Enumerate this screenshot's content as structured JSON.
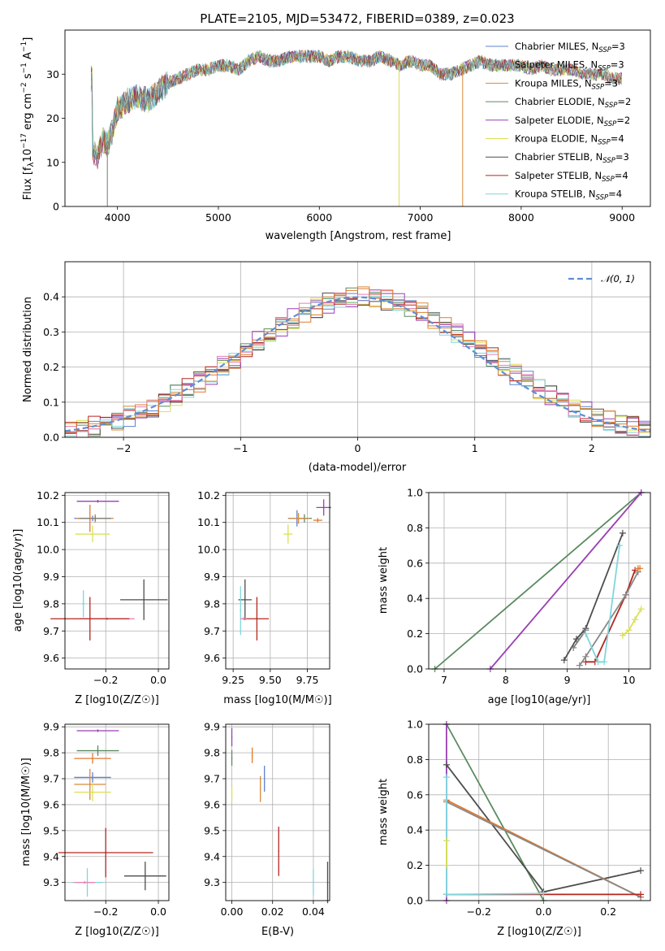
{
  "colors": [
    "#5e81d1",
    "#7e7e7e",
    "#d98b3a",
    "#5b8a5f",
    "#9a3fb3",
    "#d9e055",
    "#4d4d4d",
    "#b5261e",
    "#7fd6dc"
  ],
  "extra_colors": {
    "pink": "#e77fb3",
    "orange": "#e07a2e",
    "gray": "#888888"
  },
  "chart_data": [
    {
      "type": "line",
      "title": "PLATE=2105, MJD=53472, FIBERID=0389, z=0.023",
      "xlabel": "wavelength [Angstrom, rest frame]",
      "ylabel": "Flux [f_λ10^-17 erg cm^-2 s^-1 A^-1]",
      "xlim": [
        3480,
        9280
      ],
      "ylim": [
        0,
        40
      ],
      "xticks": [
        "4000",
        "5000",
        "6000",
        "7000",
        "8000",
        "9000"
      ],
      "yticks": [
        "0",
        "10",
        "20",
        "30"
      ],
      "legend_position": "upper-right",
      "series": [
        {
          "name": "Chabrier MILES, N_SSP=3"
        },
        {
          "name": "Salpeter MILES, N_SSP=3"
        },
        {
          "name": "Kroupa MILES, N_SSP=3"
        },
        {
          "name": "Chabrier ELODIE, N_SSP=2"
        },
        {
          "name": "Salpeter ELODIE, N_SSP=2"
        },
        {
          "name": "Kroupa ELODIE, N_SSP=4"
        },
        {
          "name": "Chabrier STELIB, N_SSP=3"
        },
        {
          "name": "Salpeter STELIB, N_SSP=4"
        },
        {
          "name": "Kroupa STELIB, N_SSP=4"
        }
      ],
      "anchors": [
        [
          3750,
          13
        ],
        [
          3800,
          11
        ],
        [
          3850,
          15
        ],
        [
          3900,
          14
        ],
        [
          3950,
          17
        ],
        [
          4000,
          22
        ],
        [
          4100,
          24
        ],
        [
          4200,
          25
        ],
        [
          4300,
          24
        ],
        [
          4400,
          26
        ],
        [
          4500,
          28
        ],
        [
          4600,
          29
        ],
        [
          4700,
          30
        ],
        [
          4800,
          31
        ],
        [
          4900,
          31
        ],
        [
          5000,
          32
        ],
        [
          5100,
          32
        ],
        [
          5200,
          31
        ],
        [
          5300,
          33
        ],
        [
          5400,
          34
        ],
        [
          5500,
          33
        ],
        [
          5600,
          33
        ],
        [
          5700,
          34
        ],
        [
          5800,
          34
        ],
        [
          5900,
          34
        ],
        [
          6000,
          34
        ],
        [
          6100,
          33
        ],
        [
          6200,
          34
        ],
        [
          6300,
          34
        ],
        [
          6400,
          33
        ],
        [
          6500,
          33
        ],
        [
          6600,
          34
        ],
        [
          6700,
          33
        ],
        [
          6800,
          32
        ],
        [
          6900,
          33
        ],
        [
          7000,
          32
        ],
        [
          7100,
          32
        ],
        [
          7200,
          30
        ],
        [
          7300,
          30
        ],
        [
          7400,
          31
        ],
        [
          7500,
          32
        ],
        [
          7600,
          33
        ],
        [
          7700,
          32
        ],
        [
          7800,
          32
        ],
        [
          7900,
          32
        ],
        [
          8000,
          32
        ],
        [
          8100,
          31
        ],
        [
          8200,
          32
        ],
        [
          8300,
          31
        ],
        [
          8400,
          31
        ],
        [
          8500,
          31
        ],
        [
          8600,
          30
        ],
        [
          8700,
          30
        ],
        [
          8800,
          30
        ],
        [
          8900,
          29
        ],
        [
          9000,
          29
        ]
      ],
      "drops": [
        {
          "x": 3900,
          "series": 3
        },
        {
          "x": 6790,
          "series": 5
        },
        {
          "x": 7420,
          "series": 2
        }
      ]
    },
    {
      "type": "bar",
      "ylabel": "Normed distribution",
      "xlabel": "(data-model)/error",
      "xlim": [
        -2.5,
        2.5
      ],
      "ylim": [
        0,
        0.5
      ],
      "xticks": [
        "−2",
        "−1",
        "0",
        "1",
        "2"
      ],
      "yticks": [
        "0.0",
        "0.1",
        "0.2",
        "0.3",
        "0.4"
      ],
      "legend": {
        "label": "𝒩(0, 1)",
        "position": "upper-right"
      },
      "bin_width": 0.1
    },
    {
      "type": "scatter",
      "xlabel": "Z [log10(Z/Z☉)]",
      "ylabel": "age  [log10(age/yr)]",
      "xlim": [
        -0.355,
        0.04
      ],
      "ylim": [
        9.56,
        10.21
      ],
      "xticks": [
        "−0.2",
        "0.0"
      ],
      "xtick_values": [
        -0.2,
        0.0
      ],
      "yticks": [
        "9.6",
        "9.7",
        "9.8",
        "9.9",
        "10.0",
        "10.1",
        "10.2"
      ],
      "points": [
        {
          "x": -0.25,
          "y": 10.115,
          "xerr": 0.07,
          "yerr": 0.01,
          "color": 0
        },
        {
          "x": -0.24,
          "y": 10.115,
          "xerr": 0.07,
          "yerr": 0.015,
          "color": 2
        },
        {
          "x": -0.26,
          "y": 10.115,
          "xerr": 0.045,
          "yerr": 0.05,
          "color": 10
        },
        {
          "x": -0.23,
          "y": 10.178,
          "xerr": 0.08,
          "yerr": 0.005,
          "color": 4
        },
        {
          "x": -0.25,
          "y": 10.057,
          "xerr": 0.065,
          "yerr": 0.03,
          "color": 5
        },
        {
          "x": -0.24,
          "y": 10.115,
          "xerr": 0.06,
          "yerr": 0.01,
          "color": 1
        },
        {
          "x": -0.055,
          "y": 9.815,
          "xerr": 0.09,
          "yerr": 0.075,
          "color": 6
        },
        {
          "x": -0.195,
          "y": 9.745,
          "xerr": 0.105,
          "yerr": 0.005,
          "color": 9
        },
        {
          "x": -0.26,
          "y": 9.745,
          "xerr": 0.15,
          "yerr": 0.08,
          "color": 7
        },
        {
          "x": -0.285,
          "y": 9.8,
          "xerr": 0.005,
          "yerr": 0.05,
          "color": 8
        }
      ]
    },
    {
      "type": "scatter",
      "xlabel": "mass [log10(M/M☉)]",
      "ylabel": "",
      "xlim": [
        9.2,
        9.9
      ],
      "ylim": [
        9.56,
        10.21
      ],
      "xticks": [
        "9.25",
        "9.50",
        "9.75"
      ],
      "xtick_values": [
        9.25,
        9.5,
        9.75
      ],
      "yticks": [
        "9.6",
        "9.7",
        "9.8",
        "9.9",
        "10.0",
        "10.1",
        "10.2"
      ],
      "points": [
        {
          "x": 9.86,
          "y": 10.155,
          "xerr": 0.05,
          "yerr": 0.03,
          "color": 4
        },
        {
          "x": 9.73,
          "y": 10.115,
          "xerr": 0.05,
          "yerr": 0.015,
          "color": 3
        },
        {
          "x": 9.68,
          "y": 10.115,
          "xerr": 0.06,
          "yerr": 0.03,
          "color": 0
        },
        {
          "x": 9.69,
          "y": 10.115,
          "xerr": 0.07,
          "yerr": 0.02,
          "color": 2
        },
        {
          "x": 9.62,
          "y": 10.057,
          "xerr": 0.03,
          "yerr": 0.035,
          "color": 5
        },
        {
          "x": 9.82,
          "y": 10.108,
          "xerr": 0.03,
          "yerr": 0.008,
          "color": 10
        },
        {
          "x": 9.33,
          "y": 9.815,
          "xerr": 0.045,
          "yerr": 0.075,
          "color": 6
        },
        {
          "x": 9.41,
          "y": 9.745,
          "xerr": 0.08,
          "yerr": 0.08,
          "color": 7
        },
        {
          "x": 9.3,
          "y": 9.775,
          "xerr": 0.005,
          "yerr": 0.09,
          "color": 8
        },
        {
          "x": 9.32,
          "y": 9.745,
          "xerr": 0.02,
          "yerr": 0.005,
          "color": 9
        }
      ]
    },
    {
      "type": "line",
      "xlabel": "age  [log10(age/yr)]",
      "ylabel": "mass weight",
      "xlim": [
        6.75,
        10.35
      ],
      "ylim": [
        0,
        1.0
      ],
      "xticks": [
        "7",
        "8",
        "9",
        "10"
      ],
      "xtick_values": [
        7,
        8,
        9,
        10
      ],
      "yticks": [
        "0.0",
        "0.2",
        "0.4",
        "0.6",
        "0.8",
        "1.0"
      ],
      "ytick_values": [
        0,
        0.2,
        0.4,
        0.6,
        0.8,
        1.0
      ],
      "lines": [
        {
          "color": 3,
          "pts": [
            [
              6.85,
              0
            ],
            [
              10.2,
              1.0
            ]
          ]
        },
        {
          "color": 4,
          "pts": [
            [
              7.75,
              0
            ],
            [
              10.2,
              1.0
            ]
          ]
        },
        {
          "color": 6,
          "pts": [
            [
              8.95,
              0.05
            ],
            [
              9.15,
              0.17
            ],
            [
              9.3,
              0.23
            ],
            [
              9.9,
              0.77
            ]
          ]
        },
        {
          "color": 1,
          "pts": [
            [
              9.1,
              0.12
            ],
            [
              9.3,
              0.22
            ]
          ]
        },
        {
          "color": 7,
          "pts": [
            [
              9.3,
              0.04
            ],
            [
              9.45,
              0.04
            ],
            [
              9.95,
              0.42
            ],
            [
              10.1,
              0.56
            ]
          ]
        },
        {
          "color": 11,
          "pts": [
            [
              9.2,
              0.02
            ],
            [
              9.3,
              0.07
            ],
            [
              9.95,
              0.42
            ],
            [
              10.15,
              0.55
            ]
          ]
        },
        {
          "color": 10,
          "pts": [
            [
              10.15,
              0.57
            ],
            [
              10.18,
              0.57
            ]
          ]
        },
        {
          "color": 8,
          "pts": [
            [
              9.3,
              0.2
            ],
            [
              9.5,
              0.04
            ],
            [
              9.6,
              0.04
            ],
            [
              9.85,
              0.7
            ]
          ]
        },
        {
          "color": 5,
          "pts": [
            [
              9.9,
              0.19
            ],
            [
              10.0,
              0.22
            ],
            [
              10.1,
              0.28
            ],
            [
              10.2,
              0.34
            ]
          ]
        }
      ]
    },
    {
      "type": "scatter",
      "xlabel": "Z [log10(Z/Z☉)]",
      "ylabel": "mass [log10(M/M☉)]",
      "xlim": [
        -0.355,
        0.04
      ],
      "ylim": [
        9.23,
        9.91
      ],
      "xticks": [
        "−0.2",
        "0.0"
      ],
      "xtick_values": [
        -0.2,
        0.0
      ],
      "yticks": [
        "9.3",
        "9.4",
        "9.5",
        "9.6",
        "9.7",
        "9.8",
        "9.9"
      ],
      "points": [
        {
          "x": -0.23,
          "y": 9.885,
          "xerr": 0.08,
          "yerr": 0.005,
          "color": 4
        },
        {
          "x": -0.23,
          "y": 9.808,
          "xerr": 0.08,
          "yerr": 0.02,
          "color": 3
        },
        {
          "x": -0.25,
          "y": 9.778,
          "xerr": 0.07,
          "yerr": 0.02,
          "color": 10
        },
        {
          "x": -0.25,
          "y": 9.705,
          "xerr": 0.07,
          "yerr": 0.02,
          "color": 0
        },
        {
          "x": -0.26,
          "y": 9.678,
          "xerr": 0.06,
          "yerr": 0.06,
          "color": 2
        },
        {
          "x": -0.25,
          "y": 9.648,
          "xerr": 0.07,
          "yerr": 0.035,
          "color": 5
        },
        {
          "x": -0.05,
          "y": 9.325,
          "xerr": 0.08,
          "yerr": 0.055,
          "color": 6
        },
        {
          "x": -0.2,
          "y": 9.415,
          "xerr": 0.18,
          "yerr": 0.095,
          "color": 7
        },
        {
          "x": -0.27,
          "y": 9.3,
          "xerr": 0.06,
          "yerr": 0.055,
          "color": 8
        },
        {
          "x": -0.28,
          "y": 9.3,
          "xerr": 0.04,
          "yerr": 0.005,
          "color": 9
        }
      ]
    },
    {
      "type": "scatter",
      "xlabel": "E(B-V)",
      "ylabel": "",
      "xlim": [
        -0.003,
        0.048
      ],
      "ylim": [
        9.23,
        9.91
      ],
      "xticks": [
        "0.00",
        "0.02",
        "0.04"
      ],
      "xtick_values": [
        0,
        0.02,
        0.04
      ],
      "yticks": [
        "9.3",
        "9.4",
        "9.5",
        "9.6",
        "9.7",
        "9.8",
        "9.9"
      ],
      "points": [
        {
          "x": 0.0,
          "y": 9.86,
          "xerr": 0,
          "yerr": 0.035,
          "color": 4
        },
        {
          "x": 0.0,
          "y": 9.78,
          "xerr": 0,
          "yerr": 0.03,
          "color": 3
        },
        {
          "x": 0.0,
          "y": 9.64,
          "xerr": 0,
          "yerr": 0.03,
          "color": 5
        },
        {
          "x": 0.01,
          "y": 9.79,
          "xerr": 0,
          "yerr": 0.03,
          "color": 10
        },
        {
          "x": 0.016,
          "y": 9.7,
          "xerr": 0,
          "yerr": 0.05,
          "color": 0
        },
        {
          "x": 0.014,
          "y": 9.66,
          "xerr": 0,
          "yerr": 0.05,
          "color": 2
        },
        {
          "x": 0.023,
          "y": 9.42,
          "xerr": 0,
          "yerr": 0.095,
          "color": 7
        },
        {
          "x": 0.04,
          "y": 9.3,
          "xerr": 0,
          "yerr": 0.05,
          "color": 8
        },
        {
          "x": 0.047,
          "y": 9.3,
          "xerr": 0,
          "yerr": 0.08,
          "color": 6
        }
      ]
    },
    {
      "type": "line",
      "xlabel": "Z [log10(Z/Z☉)]",
      "ylabel": "mass weight",
      "xlim": [
        -0.355,
        0.33
      ],
      "ylim": [
        0,
        1.0
      ],
      "xticks": [
        "−0.2",
        "0.0",
        "0.2"
      ],
      "xtick_values": [
        -0.2,
        0.0,
        0.2
      ],
      "yticks": [
        "0.0",
        "0.2",
        "0.4",
        "0.6",
        "0.8",
        "1.0"
      ],
      "ytick_values": [
        0,
        0.2,
        0.4,
        0.6,
        0.8,
        1.0
      ],
      "lines": [
        {
          "color": 3,
          "pts": [
            [
              -0.3,
              1.0
            ],
            [
              0.0,
              0.0
            ]
          ]
        },
        {
          "color": 4,
          "pts": [
            [
              -0.3,
              1.0
            ],
            [
              -0.3,
              0.0
            ]
          ]
        },
        {
          "color": 6,
          "pts": [
            [
              -0.3,
              0.77
            ],
            [
              0.0,
              0.05
            ],
            [
              0.3,
              0.17
            ]
          ]
        },
        {
          "color": 10,
          "pts": [
            [
              -0.3,
              0.57
            ],
            [
              0.3,
              0.02
            ]
          ]
        },
        {
          "color": 11,
          "pts": [
            [
              -0.3,
              0.56
            ],
            [
              0.3,
              0.02
            ]
          ]
        },
        {
          "color": 7,
          "pts": [
            [
              -0.3,
              0.035
            ],
            [
              0.3,
              0.035
            ]
          ]
        },
        {
          "color": 8,
          "pts": [
            [
              -0.3,
              0.7
            ],
            [
              -0.3,
              0.035
            ],
            [
              0.0,
              0.04
            ]
          ]
        },
        {
          "color": 5,
          "pts": [
            [
              -0.3,
              0.34
            ],
            [
              -0.3,
              0.2
            ]
          ]
        }
      ]
    }
  ]
}
